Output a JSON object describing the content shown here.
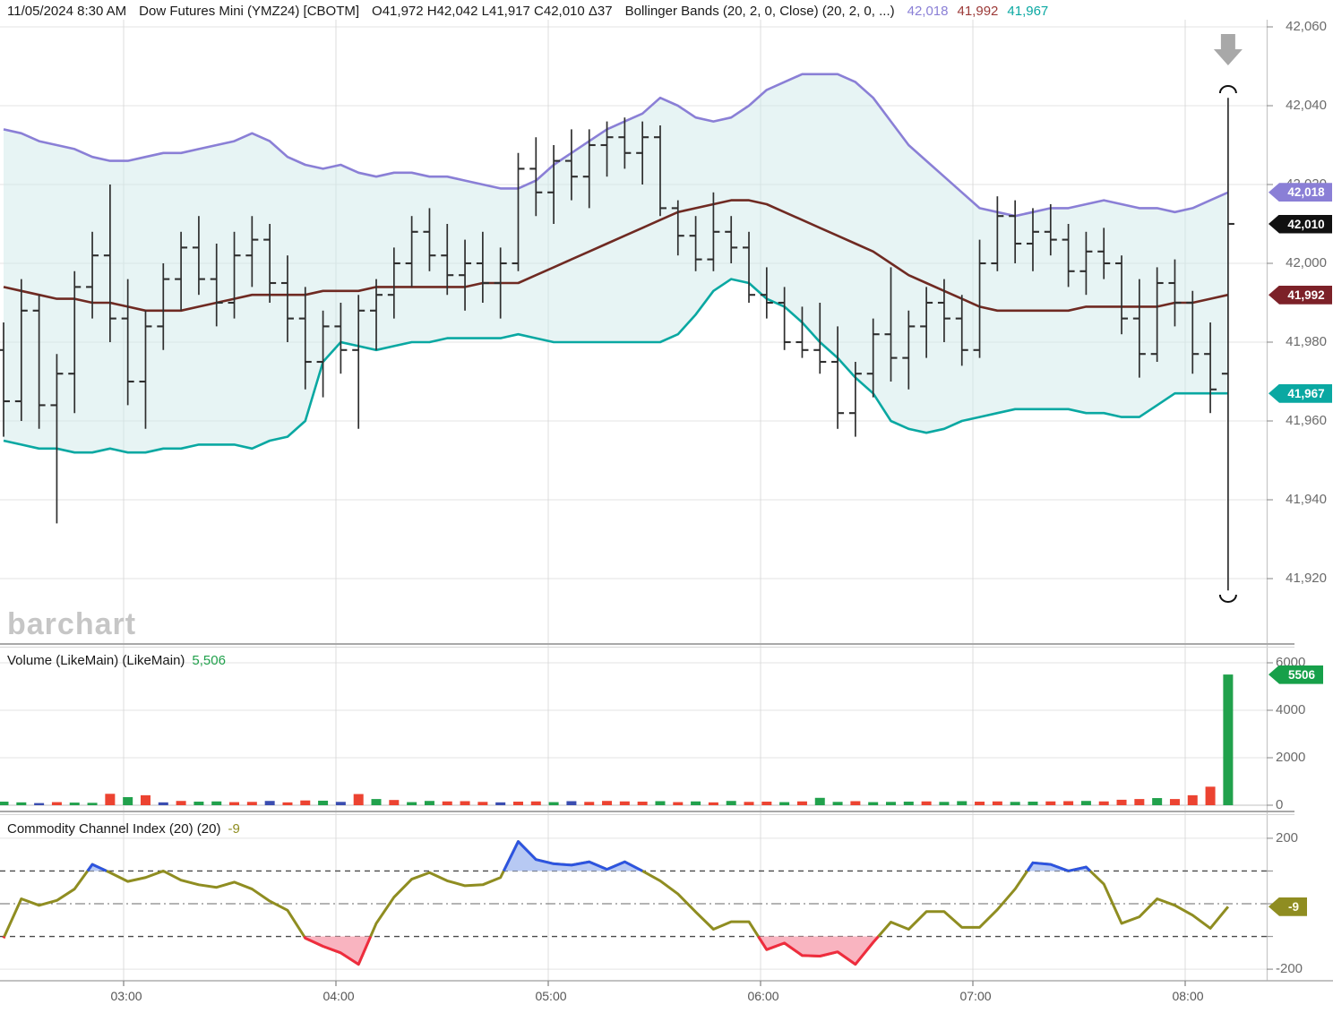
{
  "title": {
    "datetime": "11/05/2024 8:30 AM",
    "symbol": "Dow Futures Mini (YMZ24) [CBOTM]",
    "ohlc": "O41,972 H42,042 L41,917 C42,010 Δ37",
    "study": "Bollinger Bands (20, 2, 0, Close)  (20, 2, 0, ...)",
    "bb_upper_value": "42,018",
    "bb_middle_value": "41,992",
    "bb_lower_value": "41,967"
  },
  "watermark": "barchart",
  "panes": {
    "volume": {
      "label": "Volume (LikeMain)  (LikeMain)",
      "value": "5,506"
    },
    "cci": {
      "label": "Commodity Channel Index (20)  (20)",
      "value": "-9"
    }
  },
  "badges": {
    "bb_upper": "42,018",
    "last_price": "42,010",
    "bb_middle": "41,992",
    "bb_lower": "41,967",
    "volume": "5506",
    "cci": "-9"
  },
  "colors": {
    "bb_upper": "#8a7fd6",
    "bb_middle": "#6f2a22",
    "bb_lower": "#0aa8a2",
    "bb_fill": "#cfe9e9",
    "bar": "#2f2f2f",
    "last_badge": "#111111",
    "middle_badge": "#7c2128",
    "vol_up": "#21a14c",
    "vol_down": "#ec4331",
    "vol_flat": "#3a4db0",
    "cci_line": "#8f8d21",
    "cci_over": "#2d54e0",
    "cci_over_fill": "#b3c6f2",
    "cci_under": "#ef2c3e",
    "cci_under_fill": "#f9b0bd",
    "grid": "#e3e3e3",
    "vgrid": "#dcdcdc",
    "annotation": "#a8a8a8"
  },
  "y_axis": {
    "price_labels": [
      [
        "42,060",
        42060
      ],
      [
        "42,040",
        42040
      ],
      [
        "42,020",
        42020
      ],
      [
        "42,000",
        42000
      ],
      [
        "41,980",
        41980
      ],
      [
        "41,960",
        41960
      ],
      [
        "41,940",
        41940
      ],
      [
        "41,920",
        41920
      ]
    ],
    "volume_labels": [
      [
        "6000",
        6000
      ],
      [
        "4000",
        4000
      ],
      [
        "2000",
        2000
      ],
      [
        "0",
        0
      ]
    ],
    "cci_labels": [
      [
        "200",
        200
      ],
      [
        "-200",
        -200
      ]
    ]
  },
  "x_axis": {
    "labels": [
      "03:00",
      "04:00",
      "05:00",
      "06:00",
      "07:00",
      "08:00"
    ],
    "positions": [
      138,
      375,
      612,
      849,
      1086,
      1323
    ]
  },
  "chart_data": {
    "type": "ohlc-multi-panel",
    "interval_note": "5-minute bars ending 8:30 AM",
    "panels": [
      "price+bollinger",
      "volume",
      "cci"
    ],
    "price_ylim": [
      41910,
      42062
    ],
    "volume_ylim": [
      0,
      6000
    ],
    "cci_ylim": [
      -220,
      220
    ],
    "cci_thresholds": {
      "overbought": 100,
      "zero": 0,
      "oversold": -100
    },
    "ohlc": [
      [
        41978,
        41985,
        41956,
        41965
      ],
      [
        41965,
        41996,
        41960,
        41988
      ],
      [
        41988,
        41992,
        41958,
        41964
      ],
      [
        41964,
        41977,
        41934,
        41972
      ],
      [
        41972,
        41998,
        41962,
        41994
      ],
      [
        41994,
        42008,
        41986,
        42002
      ],
      [
        42002,
        42020,
        41980,
        41986
      ],
      [
        41986,
        41996,
        41964,
        41970
      ],
      [
        41970,
        41988,
        41958,
        41984
      ],
      [
        41984,
        42000,
        41978,
        41996
      ],
      [
        41996,
        42008,
        41988,
        42004
      ],
      [
        42004,
        42012,
        41992,
        41996
      ],
      [
        41996,
        42005,
        41984,
        41990
      ],
      [
        41990,
        42008,
        41986,
        42002
      ],
      [
        42002,
        42012,
        41994,
        42006
      ],
      [
        42006,
        42010,
        41990,
        41995
      ],
      [
        41995,
        42002,
        41980,
        41986
      ],
      [
        41986,
        41994,
        41968,
        41975
      ],
      [
        41975,
        41988,
        41966,
        41984
      ],
      [
        41984,
        41990,
        41972,
        41978
      ],
      [
        41978,
        41992,
        41958,
        41988
      ],
      [
        41988,
        41996,
        41978,
        41992
      ],
      [
        41992,
        42004,
        41986,
        42000
      ],
      [
        42000,
        42012,
        41994,
        42008
      ],
      [
        42008,
        42014,
        41998,
        42002
      ],
      [
        42002,
        42010,
        41992,
        41997
      ],
      [
        41997,
        42006,
        41988,
        42000
      ],
      [
        42000,
        42008,
        41990,
        41995
      ],
      [
        41995,
        42004,
        41986,
        42000
      ],
      [
        42000,
        42028,
        41998,
        42024
      ],
      [
        42024,
        42032,
        42012,
        42018
      ],
      [
        42018,
        42030,
        42010,
        42026
      ],
      [
        42026,
        42034,
        42016,
        42022
      ],
      [
        42022,
        42034,
        42014,
        42030
      ],
      [
        42030,
        42036,
        42022,
        42032
      ],
      [
        42032,
        42037,
        42024,
        42028
      ],
      [
        42028,
        42036,
        42020,
        42032
      ],
      [
        42032,
        42035,
        42012,
        42014
      ],
      [
        42014,
        42016,
        42002,
        42007
      ],
      [
        42007,
        42012,
        41998,
        42001
      ],
      [
        42001,
        42018,
        41998,
        42008
      ],
      [
        42008,
        42012,
        42000,
        42004
      ],
      [
        42004,
        42008,
        41990,
        41992
      ],
      [
        41992,
        41999,
        41986,
        41990
      ],
      [
        41990,
        41994,
        41978,
        41980
      ],
      [
        41980,
        41989,
        41976,
        41978
      ],
      [
        41978,
        41990,
        41972,
        41975
      ],
      [
        41975,
        41984,
        41958,
        41962
      ],
      [
        41962,
        41975,
        41956,
        41972
      ],
      [
        41972,
        41986,
        41966,
        41982
      ],
      [
        41982,
        41999,
        41970,
        41976
      ],
      [
        41976,
        41988,
        41968,
        41984
      ],
      [
        41984,
        41994,
        41976,
        41990
      ],
      [
        41990,
        41996,
        41980,
        41986
      ],
      [
        41986,
        41992,
        41974,
        41978
      ],
      [
        41978,
        42006,
        41976,
        42000
      ],
      [
        42000,
        42017,
        41998,
        42012
      ],
      [
        42012,
        42016,
        42000,
        42005
      ],
      [
        42005,
        42014,
        41998,
        42008
      ],
      [
        42008,
        42015,
        42002,
        42006
      ],
      [
        42006,
        42010,
        41994,
        41998
      ],
      [
        41998,
        42008,
        41992,
        42003
      ],
      [
        42003,
        42009,
        41996,
        42000
      ],
      [
        42000,
        42002,
        41982,
        41986
      ],
      [
        41986,
        41996,
        41971,
        41977
      ],
      [
        41977,
        41999,
        41975,
        41995
      ],
      [
        41995,
        42001,
        41984,
        41990
      ],
      [
        41990,
        41993,
        41972,
        41977
      ],
      [
        41977,
        41985,
        41962,
        41968
      ],
      [
        41972,
        42042,
        41917,
        42010
      ]
    ],
    "bollinger_upper": [
      42034,
      42033,
      42031,
      42030,
      42029,
      42027,
      42026,
      42026,
      42027,
      42028,
      42028,
      42029,
      42030,
      42031,
      42033,
      42031,
      42027,
      42025,
      42024,
      42025,
      42023,
      42022,
      42023,
      42023,
      42022,
      42022,
      42021,
      42020,
      42019,
      42019,
      42021,
      42025,
      42028,
      42031,
      42034,
      42036,
      42038,
      42042,
      42040,
      42037,
      42036,
      42037,
      42040,
      42044,
      42046,
      42048,
      42048,
      42048,
      42046,
      42042,
      42036,
      42030,
      42026,
      42022,
      42018,
      42014,
      42013,
      42012,
      42013,
      42014,
      42014,
      42015,
      42016,
      42015,
      42014,
      42014,
      42013,
      42014,
      42016,
      42018
    ],
    "bollinger_middle": [
      41994,
      41993,
      41992,
      41991,
      41991,
      41990,
      41990,
      41989,
      41988,
      41988,
      41988,
      41989,
      41990,
      41991,
      41992,
      41992,
      41992,
      41992,
      41993,
      41993,
      41993,
      41994,
      41994,
      41994,
      41994,
      41994,
      41994,
      41995,
      41995,
      41995,
      41997,
      41999,
      42001,
      42003,
      42005,
      42007,
      42009,
      42011,
      42013,
      42014,
      42015,
      42016,
      42016,
      42015,
      42013,
      42011,
      42009,
      42007,
      42005,
      42003,
      42000,
      41997,
      41995,
      41993,
      41991,
      41989,
      41988,
      41988,
      41988,
      41988,
      41988,
      41989,
      41989,
      41989,
      41989,
      41989,
      41990,
      41990,
      41991,
      41992
    ],
    "bollinger_lower": [
      41955,
      41954,
      41953,
      41953,
      41952,
      41952,
      41953,
      41952,
      41952,
      41953,
      41953,
      41954,
      41954,
      41954,
      41953,
      41955,
      41956,
      41960,
      41975,
      41980,
      41979,
      41978,
      41979,
      41980,
      41980,
      41981,
      41981,
      41981,
      41981,
      41982,
      41981,
      41980,
      41980,
      41980,
      41980,
      41980,
      41980,
      41980,
      41982,
      41987,
      41993,
      41996,
      41995,
      41991,
      41989,
      41985,
      41980,
      41976,
      41971,
      41967,
      41960,
      41958,
      41957,
      41958,
      41960,
      41961,
      41962,
      41963,
      41963,
      41963,
      41963,
      41962,
      41962,
      41961,
      41961,
      41964,
      41967,
      41967,
      41967,
      41967
    ],
    "volume": [
      150,
      120,
      90,
      130,
      110,
      100,
      480,
      340,
      420,
      120,
      180,
      150,
      160,
      130,
      140,
      180,
      120,
      200,
      190,
      140,
      470,
      260,
      220,
      130,
      180,
      160,
      170,
      140,
      120,
      150,
      160,
      130,
      170,
      140,
      180,
      160,
      150,
      170,
      130,
      160,
      120,
      180,
      140,
      150,
      130,
      160,
      310,
      140,
      170,
      130,
      140,
      150,
      160,
      140,
      170,
      150,
      160,
      140,
      150,
      160,
      170,
      180,
      160,
      230,
      260,
      300,
      260,
      420,
      780,
      5506
    ],
    "volume_colors": [
      "g",
      "g",
      "b",
      "r",
      "g",
      "g",
      "r",
      "g",
      "r",
      "b",
      "r",
      "g",
      "g",
      "r",
      "r",
      "b",
      "r",
      "r",
      "g",
      "b",
      "r",
      "g",
      "r",
      "g",
      "g",
      "r",
      "r",
      "r",
      "b",
      "r",
      "r",
      "g",
      "b",
      "r",
      "r",
      "r",
      "r",
      "g",
      "r",
      "g",
      "r",
      "g",
      "r",
      "r",
      "g",
      "r",
      "g",
      "g",
      "r",
      "g",
      "g",
      "g",
      "r",
      "g",
      "g",
      "r",
      "r",
      "g",
      "g",
      "r",
      "r",
      "g",
      "r",
      "r",
      "r",
      "g",
      "r",
      "r",
      "r",
      "g"
    ],
    "cci": [
      -105,
      15,
      -5,
      10,
      45,
      120,
      95,
      68,
      80,
      100,
      72,
      58,
      50,
      66,
      45,
      8,
      -20,
      -105,
      -130,
      -150,
      -185,
      -60,
      20,
      75,
      95,
      70,
      55,
      58,
      80,
      190,
      135,
      122,
      118,
      128,
      105,
      128,
      100,
      70,
      30,
      -25,
      -78,
      -55,
      -55,
      -140,
      -120,
      -158,
      -160,
      -147,
      -185,
      -118,
      -56,
      -78,
      -24,
      -24,
      -72,
      -72,
      -18,
      45,
      125,
      120,
      100,
      112,
      60,
      -60,
      -40,
      15,
      -5,
      -35,
      -75,
      -9
    ]
  }
}
